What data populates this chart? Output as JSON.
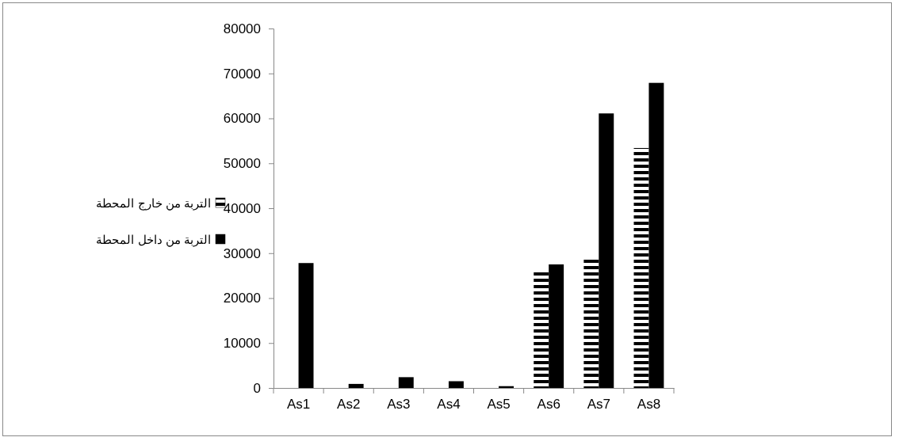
{
  "chart_data": {
    "type": "bar",
    "categories": [
      "As1",
      "As2",
      "As3",
      "As4",
      "As5",
      "As6",
      "As7",
      "As8"
    ],
    "series": [
      {
        "name": "التربة من خارج المحطة",
        "color": "#000000",
        "values": [
          null,
          null,
          null,
          null,
          null,
          26000,
          29000,
          53400
        ]
      },
      {
        "name": "التربة من داخل المحطة",
        "color": "#000000",
        "values": [
          27800,
          900,
          2400,
          1500,
          400,
          27500,
          61100,
          67900
        ]
      }
    ],
    "ylim": [
      0,
      80000
    ],
    "yticks": [
      0,
      10000,
      20000,
      30000,
      40000,
      50000,
      60000,
      70000,
      80000
    ],
    "grid": false,
    "legend": "left"
  }
}
